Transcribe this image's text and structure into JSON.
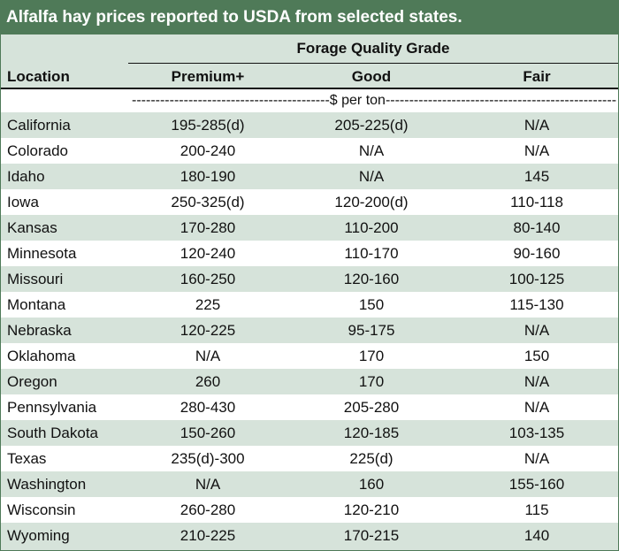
{
  "title": "Alfalfa hay prices reported to USDA from selected states.",
  "group_header": "Forage Quality Grade",
  "columns": {
    "location": "Location",
    "premium": "Premium+",
    "good": "Good",
    "fair": "Fair"
  },
  "unit_label": "------------------------------------------$ per ton-------------------------------------------------",
  "rows": [
    {
      "location": "California",
      "premium": "195-285(d)",
      "good": "205-225(d)",
      "fair": "N/A"
    },
    {
      "location": "Colorado",
      "premium": "200-240",
      "good": "N/A",
      "fair": "N/A"
    },
    {
      "location": "Idaho",
      "premium": "180-190",
      "good": "N/A",
      "fair": "145"
    },
    {
      "location": "Iowa",
      "premium": "250-325(d)",
      "good": "120-200(d)",
      "fair": "110-118"
    },
    {
      "location": "Kansas",
      "premium": "170-280",
      "good": "110-200",
      "fair": "80-140"
    },
    {
      "location": "Minnesota",
      "premium": "120-240",
      "good": "110-170",
      "fair": "90-160"
    },
    {
      "location": "Missouri",
      "premium": "160-250",
      "good": "120-160",
      "fair": "100-125"
    },
    {
      "location": "Montana",
      "premium": "225",
      "good": "150",
      "fair": "115-130"
    },
    {
      "location": "Nebraska",
      "premium": "120-225",
      "good": "95-175",
      "fair": "N/A"
    },
    {
      "location": "Oklahoma",
      "premium": "N/A",
      "good": "170",
      "fair": "150"
    },
    {
      "location": "Oregon",
      "premium": "260",
      "good": "170",
      "fair": "N/A"
    },
    {
      "location": "Pennsylvania",
      "premium": "280-430",
      "good": "205-280",
      "fair": "N/A"
    },
    {
      "location": "South Dakota",
      "premium": "150-260",
      "good": "120-185",
      "fair": "103-135"
    },
    {
      "location": "Texas",
      "premium": "235(d)-300",
      "good": "225(d)",
      "fair": "N/A"
    },
    {
      "location": "Washington",
      "premium": "N/A",
      "good": "160",
      "fair": "155-160"
    },
    {
      "location": "Wisconsin",
      "premium": "260-280",
      "good": "120-210",
      "fair": "115"
    },
    {
      "location": "Wyoming",
      "premium": "210-225",
      "good": "170-215",
      "fair": "140"
    }
  ],
  "colors": {
    "title_bar": "#4f7a58",
    "shaded_row": "#d6e3da",
    "plain_row": "#ffffff"
  }
}
